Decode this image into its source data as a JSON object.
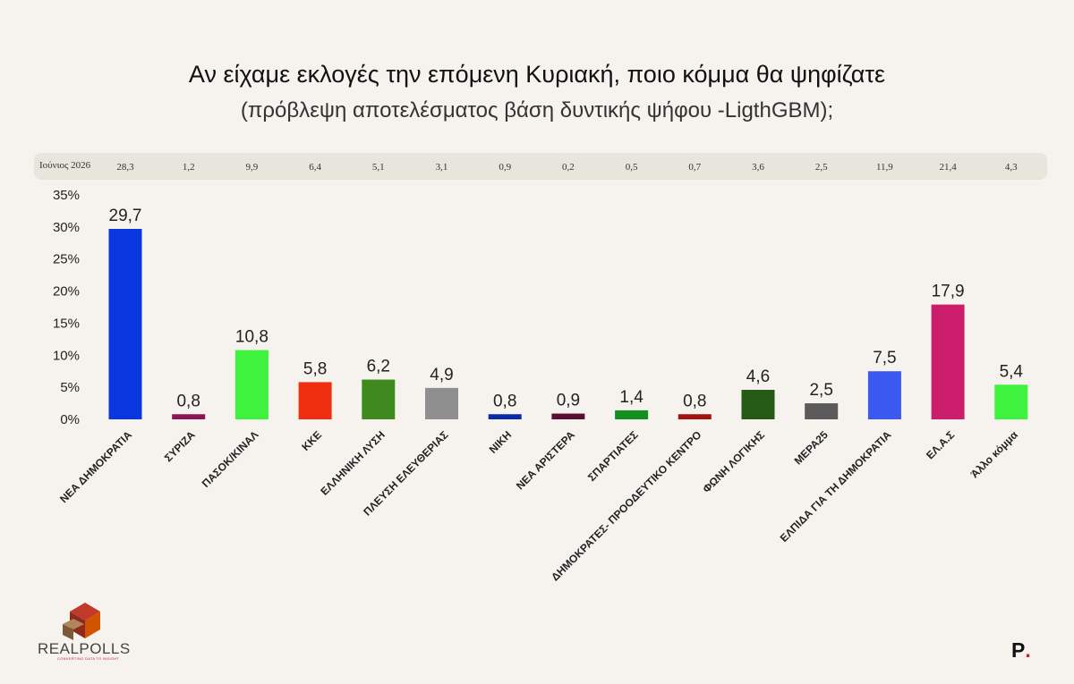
{
  "header": {
    "title": "Αν είχαμε εκλογές την επόμενη Κυριακή, ποιο κόμμα θα ψηφίζατε",
    "subtitle": "(πρόβλεψη αποτελέσματος βάση δυντικής ψήφου -LigthGBM);"
  },
  "previous": {
    "label": "Ιούνιος 2026",
    "values": [
      "28,3",
      "1,2",
      "9,9",
      "6,4",
      "5,1",
      "3,1",
      "0,9",
      "0,2",
      "0,5",
      "0,7",
      "3,6",
      "2,5",
      "11,9",
      "21,4",
      "4,3"
    ]
  },
  "chart_data": {
    "type": "bar",
    "categories": [
      "ΝΕΑ ΔΗΜΟΚΡΑΤΙΑ",
      "ΣΥΡΙΖΑ",
      "ΠΑΣΟΚ/ΚΙΝΑΛ",
      "ΚΚΕ",
      "ΕΛΛΗΝΙΚΗ ΛΥΣΗ",
      "ΠΛΕΥΣΗ ΕΛΕΥΘΕΡΙΑΣ",
      "ΝΙΚΗ",
      "ΝΕΑ ΑΡΙΣΤΕΡΑ",
      "ΣΠΑΡΤΙΑΤΕΣ",
      "ΔΗΜΟΚΡΑΤΕΣ-  ΠΡΟΟΔΕΥΤΙΚΟ ΚΕΝΤΡΟ",
      "ΦΩΝΗ ΛΟΓΙΚΗΣ",
      "ΜΕΡΑ25",
      "ΕΛΠΙΔΑ ΓΙΑ ΤΗ ΔΗΜΟΚΡΑΤΙΑ",
      "ΕΛ.Α.Σ",
      "Άλλο κόμμα"
    ],
    "values": [
      29.7,
      0.8,
      10.8,
      5.8,
      6.2,
      4.9,
      0.8,
      0.9,
      1.4,
      0.8,
      4.6,
      2.5,
      7.5,
      17.9,
      5.4
    ],
    "value_labels": [
      "29,7",
      "0,8",
      "10,8",
      "5,8",
      "6,2",
      "4,9",
      "0,8",
      "0,9",
      "1,4",
      "0,8",
      "4,6",
      "2,5",
      "7,5",
      "17,9",
      "5,4"
    ],
    "colors": [
      "#0a36e0",
      "#8c1456",
      "#3ef23e",
      "#f02e10",
      "#3f8a1f",
      "#8f8f8f",
      "#0a2aa8",
      "#5a0f32",
      "#138f20",
      "#a3120e",
      "#245a14",
      "#5a5a5a",
      "#3b59f0",
      "#cc1c6c",
      "#3ef23e"
    ],
    "yticks": [
      "0%",
      "5%",
      "10%",
      "15%",
      "20%",
      "25%",
      "30%",
      "35%"
    ],
    "ylim": [
      0,
      35
    ],
    "grid": false
  },
  "branding": {
    "logo_text": "REALPOLLS",
    "logo_tagline": "CONVERTING DATA TO INSIGHT",
    "mark_letter": "P",
    "mark_dot": "."
  }
}
